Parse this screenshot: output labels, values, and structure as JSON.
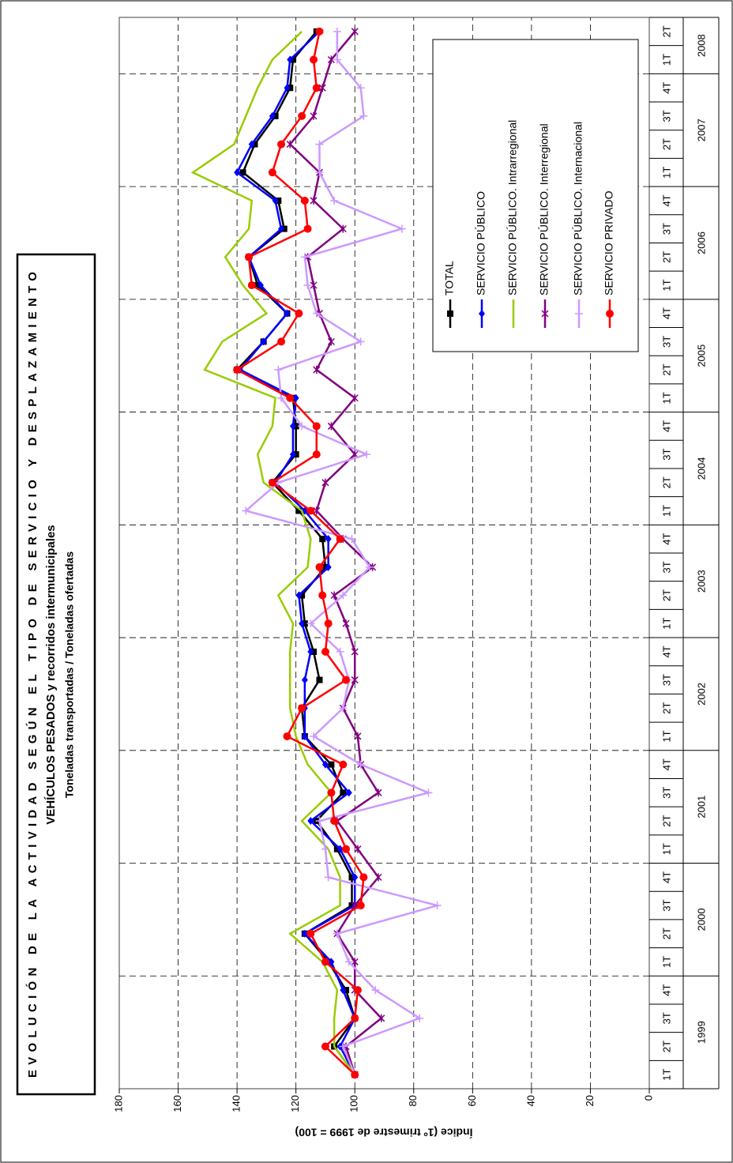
{
  "chart_data": {
    "type": "line",
    "title": "EVOLUCIÓN DE LA ACTIVIDAD SEGÚN EL TIPO DE SERVICIO Y DESPLAZAMIENTO",
    "subtitle": "VEHÍCULOS PESADOS y recorridos intermunicipales",
    "subtitle2": "Toneladas transportadas / Toneladas ofertadas",
    "y_label": "Índice (1º trimestre de 1999 = 100)",
    "categories": [
      "1T",
      "2T",
      "3T",
      "4T",
      "1T",
      "2T",
      "3T",
      "4T",
      "1T",
      "2T",
      "3T",
      "4T",
      "1T",
      "2T",
      "3T",
      "4T",
      "1T",
      "2T",
      "3T",
      "4T",
      "1T",
      "2T",
      "3T",
      "4T",
      "1T",
      "2T",
      "3T",
      "4T",
      "1T",
      "2T",
      "3T",
      "4T",
      "1T",
      "2T",
      "3T",
      "4T",
      "1T",
      "2T"
    ],
    "years": [
      "1999",
      "2000",
      "2001",
      "2002",
      "2003",
      "2004",
      "2005",
      "2006",
      "2007",
      "2008"
    ],
    "ylim": [
      0,
      180
    ],
    "yticks": [
      0,
      20,
      40,
      60,
      80,
      100,
      120,
      140,
      160,
      180
    ],
    "grid": true,
    "series": [
      {
        "name": "TOTAL",
        "color": "#000000",
        "marker": "square",
        "values": [
          100,
          107,
          100,
          103,
          109,
          117,
          101,
          101,
          106,
          113,
          104,
          108,
          117,
          118,
          112,
          114,
          117,
          118,
          110,
          111,
          119,
          128,
          120,
          120,
          121,
          140,
          131,
          123,
          133,
          136,
          124,
          126,
          138,
          134,
          127,
          122,
          121,
          113
        ]
      },
      {
        "name": "SERVICIO PÚBLICO",
        "color": "#0000ff",
        "marker": "diamond",
        "values": [
          100,
          105,
          100,
          104,
          108,
          117,
          100,
          100,
          105,
          115,
          102,
          110,
          117,
          117,
          117,
          115,
          118,
          119,
          109,
          109,
          117,
          127,
          121,
          121,
          120,
          139,
          131,
          123,
          132,
          136,
          125,
          127,
          140,
          135,
          128,
          123,
          122,
          112
        ]
      },
      {
        "name": "SERVICIO PÚBLICO. Intrarregional",
        "color": "#99cc00",
        "marker": "none",
        "values": [
          100,
          107,
          107,
          106,
          111,
          122,
          105,
          105,
          109,
          118,
          108,
          116,
          120,
          122,
          122,
          122,
          121,
          126,
          116,
          115,
          118,
          131,
          133,
          128,
          127,
          151,
          145,
          130,
          138,
          144,
          136,
          135,
          155,
          141,
          137,
          133,
          128,
          118
        ]
      },
      {
        "name": "SERVICIO PÚBLICO. Interregional",
        "color": "#800080",
        "marker": "star",
        "values": [
          100,
          103,
          91,
          100,
          100,
          106,
          100,
          92,
          99,
          106,
          92,
          98,
          99,
          104,
          100,
          100,
          103,
          107,
          94,
          104,
          113,
          110,
          100,
          108,
          100,
          113,
          108,
          112,
          114,
          116,
          104,
          114,
          112,
          122,
          114,
          111,
          108,
          100
        ]
      },
      {
        "name": "SERVICIO PÚBLICO. Internacional",
        "color": "#cc99ff",
        "marker": "plus",
        "values": [
          100,
          104,
          78,
          93,
          102,
          106,
          72,
          109,
          110,
          112,
          75,
          98,
          114,
          104,
          102,
          105,
          115,
          104,
          95,
          101,
          137,
          126,
          96,
          118,
          125,
          126,
          98,
          113,
          116,
          117,
          84,
          107,
          112,
          112,
          97,
          98,
          106,
          106
        ]
      },
      {
        "name": "SERVICIO PRIVADO",
        "color": "#ff0000",
        "marker": "circle",
        "values": [
          100,
          110,
          100,
          99,
          110,
          115,
          98,
          97,
          103,
          107,
          108,
          104,
          123,
          118,
          103,
          110,
          109,
          111,
          112,
          105,
          115,
          128,
          113,
          113,
          122,
          140,
          125,
          119,
          135,
          136,
          116,
          117,
          128,
          125,
          118,
          113,
          114,
          112
        ]
      }
    ]
  }
}
